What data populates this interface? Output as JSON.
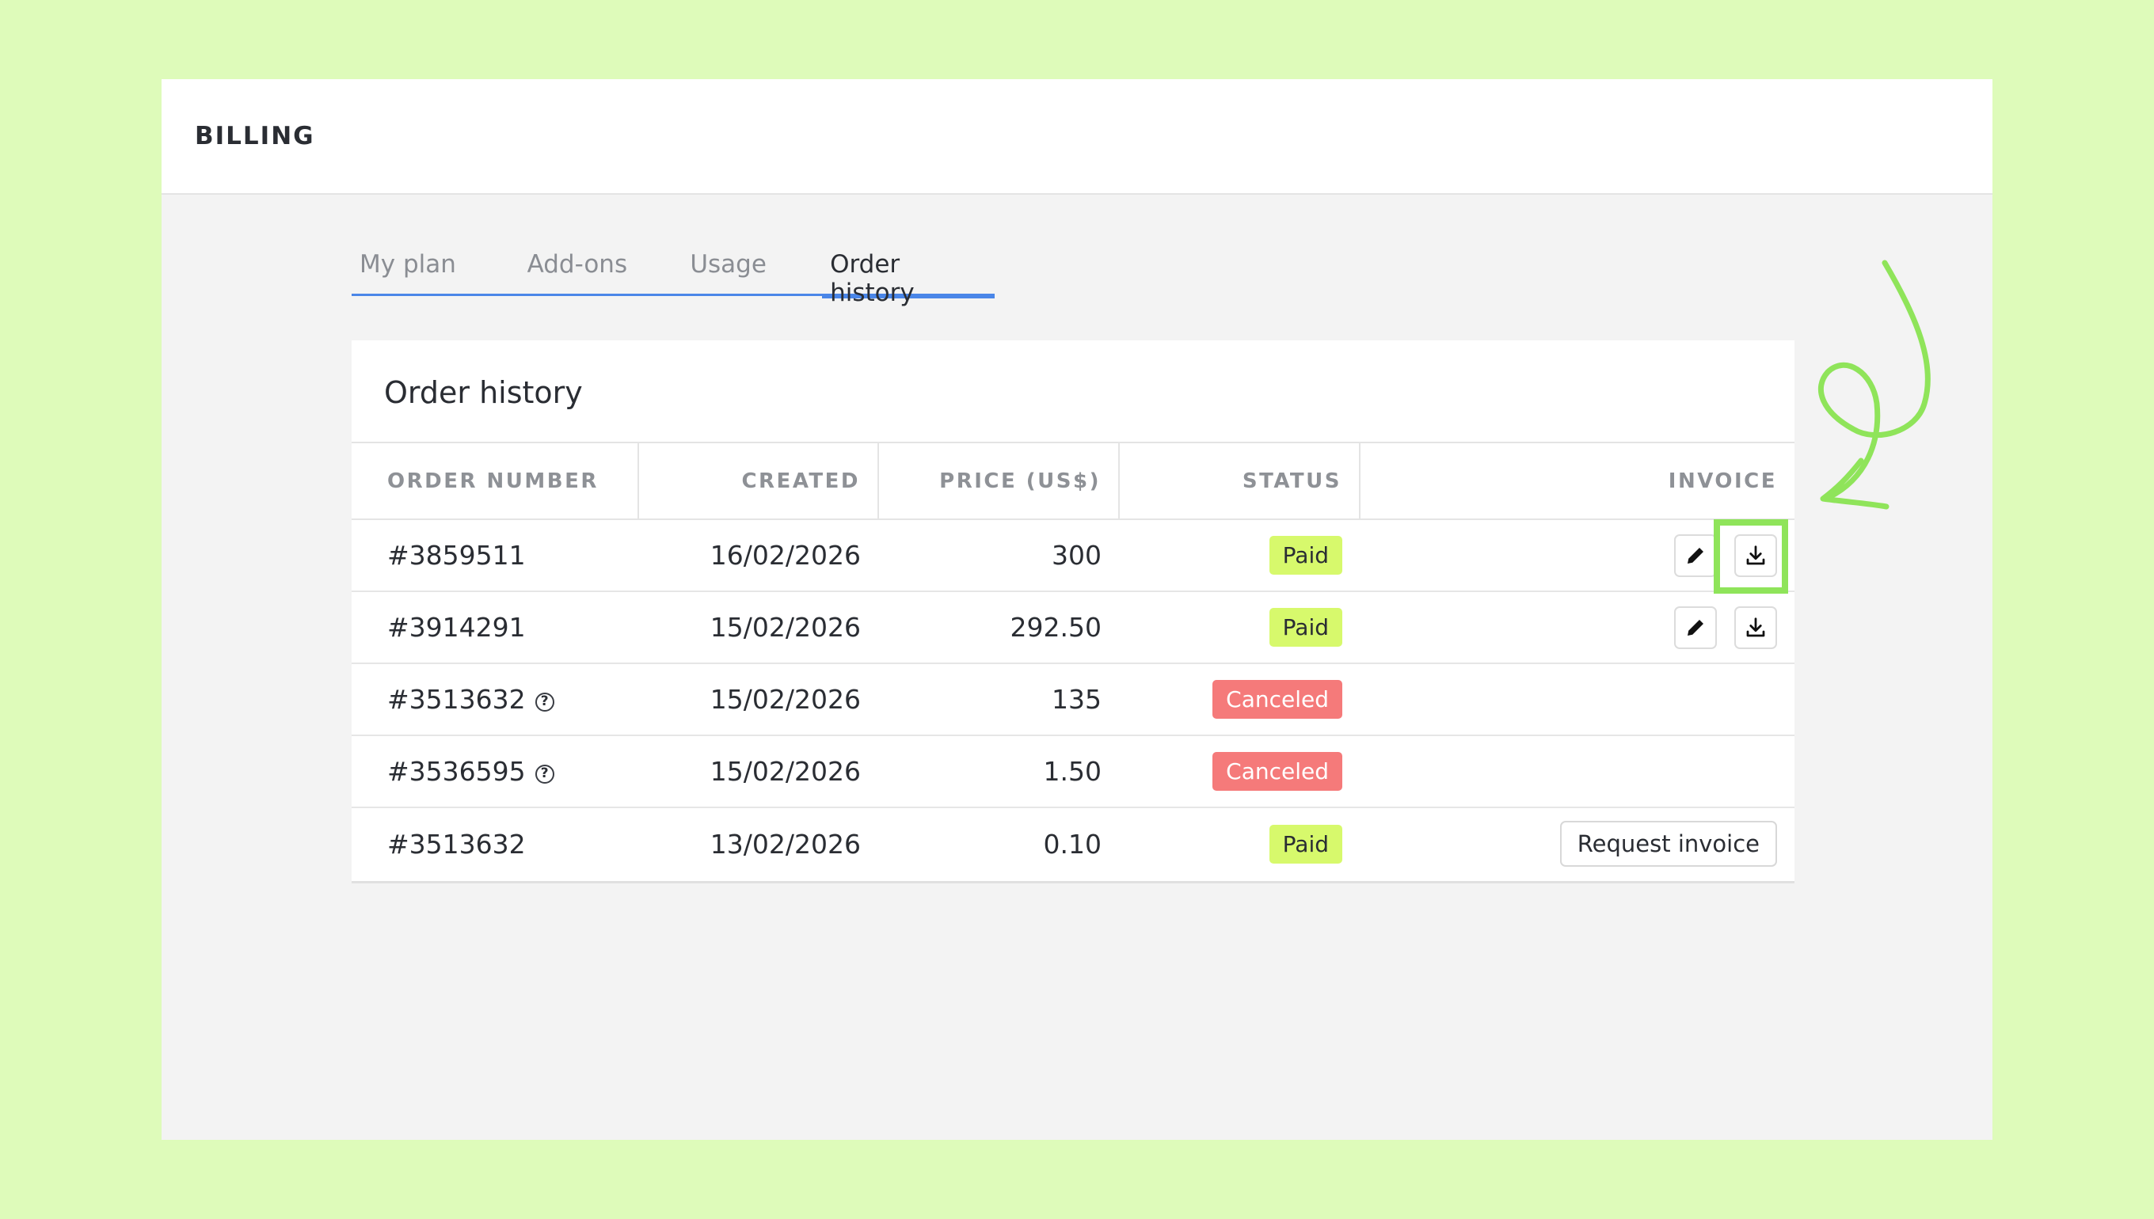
{
  "header": {
    "title": "BILLING"
  },
  "tabs": [
    {
      "label": "My plan"
    },
    {
      "label": "Add-ons"
    },
    {
      "label": "Usage"
    },
    {
      "label": "Order history"
    }
  ],
  "card": {
    "title": "Order history",
    "columns": [
      "ORDER NUMBER",
      "CREATED",
      "PRICE (US$)",
      "STATUS",
      "INVOICE"
    ],
    "rows": [
      {
        "order": "#3859511",
        "created": "16/02/2026",
        "price": "300",
        "status": "Paid"
      },
      {
        "order": "#3914291",
        "created": "15/02/2026",
        "price": "292.50",
        "status": "Paid"
      },
      {
        "order": "#3513632",
        "created": "15/02/2026",
        "price": "135",
        "status": "Canceled"
      },
      {
        "order": "#3536595",
        "created": "15/02/2026",
        "price": "1.50",
        "status": "Canceled"
      },
      {
        "order": "#3513632",
        "created": "13/02/2026",
        "price": "0.10",
        "status": "Paid"
      }
    ],
    "request_invoice_label": "Request invoice",
    "help_glyph": "?"
  },
  "icons": {
    "edit": "pencil-icon",
    "download": "download-icon",
    "help": "question-circle-icon"
  },
  "colors": {
    "background": "#defbba",
    "accent": "#4a86e8",
    "paid": "#d7f96c",
    "canceled": "#f57a7a",
    "highlight": "#8fe45a"
  }
}
